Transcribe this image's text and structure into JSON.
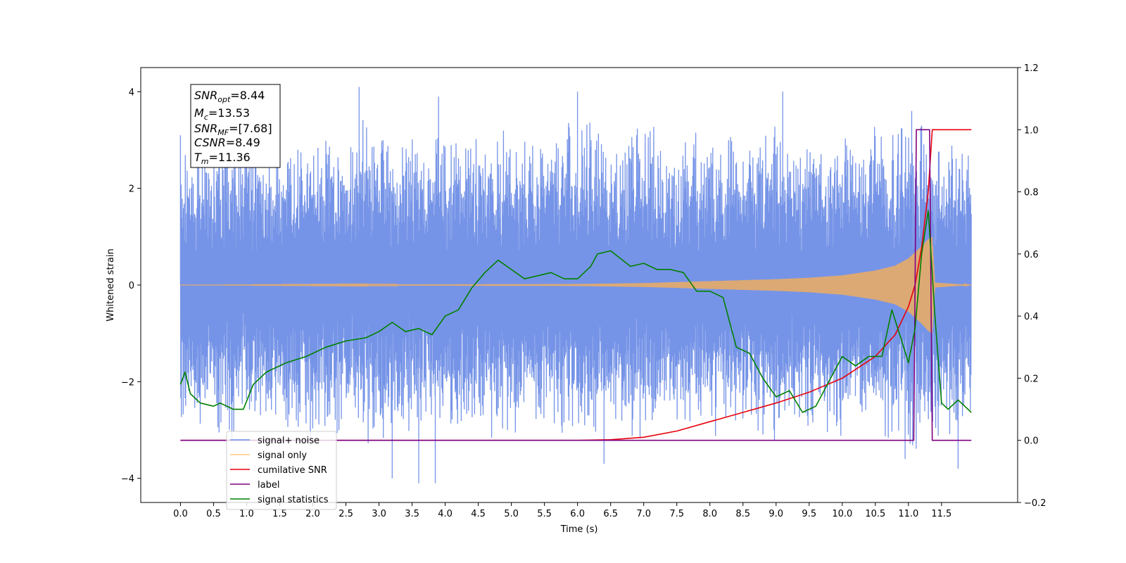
{
  "chart_data": {
    "type": "line",
    "xlabel": "Time (s)",
    "ylabel": "Whitened strain",
    "xlim": [
      -0.6,
      12.65
    ],
    "ylim": [
      -4.5,
      4.5
    ],
    "y2lim": [
      -0.2,
      1.2
    ],
    "xticks": [
      0.0,
      0.5,
      1.0,
      1.5,
      2.0,
      2.5,
      3.0,
      3.5,
      4.0,
      4.5,
      5.0,
      5.5,
      6.0,
      6.5,
      7.0,
      7.5,
      8.0,
      8.5,
      9.0,
      9.5,
      10.0,
      10.5,
      11.0,
      11.5
    ],
    "xtick_labels": [
      "0.0",
      "0.5",
      "1.0",
      "1.5",
      "2.0",
      "2.5",
      "3.0",
      "3.5",
      "4.0",
      "4.5",
      "5.0",
      "5.5",
      "6.0",
      "6.5",
      "7.0",
      "7.5",
      "8.0",
      "8.5",
      "9.0",
      "9.5",
      "10.0",
      "10.5",
      "11.0",
      "11.5"
    ],
    "yticks": [
      -4,
      -2,
      0,
      2,
      4
    ],
    "ytick_labels": [
      "−4",
      "−2",
      "0",
      "2",
      "4"
    ],
    "y2ticks": [
      -0.2,
      0.0,
      0.2,
      0.4,
      0.6,
      0.8,
      1.0,
      1.2
    ],
    "y2tick_labels": [
      "−0.2",
      "0.0",
      "0.2",
      "0.4",
      "0.6",
      "0.8",
      "1.0",
      "1.2"
    ],
    "grid": false,
    "legend_position": "lower-left",
    "annotation": {
      "lines": [
        {
          "base": "SNR",
          "sub": "opt",
          "rest": "=8.44"
        },
        {
          "base": "M",
          "sub": "c",
          "rest": "=13.53"
        },
        {
          "base": "SNR",
          "sub": "MF",
          "rest": "=[7.68]"
        },
        {
          "base": "CSNR",
          "sub": "",
          "rest": "=8.49"
        },
        {
          "base": "T",
          "sub": "m",
          "rest": "=11.36"
        }
      ]
    },
    "noise_envelope": {
      "x": [
        0.0,
        0.5,
        1.0,
        1.5,
        2.0,
        2.5,
        3.0,
        3.5,
        4.0,
        4.5,
        5.0,
        5.5,
        6.0,
        6.5,
        7.0,
        7.5,
        8.0,
        8.5,
        9.0,
        9.5,
        10.0,
        10.5,
        11.0,
        11.5,
        11.95
      ],
      "upper": [
        3.1,
        3.2,
        3.4,
        3.2,
        3.3,
        3.4,
        3.5,
        3.1,
        3.3,
        3.5,
        3.2,
        3.4,
        3.6,
        3.3,
        3.5,
        3.1,
        3.4,
        3.3,
        3.6,
        3.2,
        3.3,
        3.4,
        3.6,
        3.3,
        3.0
      ],
      "lower": [
        -3.0,
        -3.3,
        -3.2,
        -3.1,
        -3.4,
        -3.2,
        -3.5,
        -3.3,
        -3.2,
        -3.4,
        -3.1,
        -3.3,
        -3.5,
        -3.2,
        -3.4,
        -3.1,
        -3.3,
        -3.2,
        -3.4,
        -3.3,
        -3.2,
        -3.4,
        -3.5,
        -3.3,
        -3.0
      ],
      "spikes_up": [
        [
          0.0,
          3.1
        ],
        [
          2.7,
          4.1
        ],
        [
          3.9,
          3.9
        ],
        [
          6.0,
          4.0
        ],
        [
          9.1,
          4.0
        ],
        [
          11.05,
          3.6
        ],
        [
          11.2,
          3.3
        ]
      ],
      "spikes_down": [
        [
          3.2,
          -4.0
        ],
        [
          3.6,
          -4.1
        ],
        [
          3.85,
          -4.1
        ],
        [
          6.4,
          -3.7
        ],
        [
          10.95,
          -3.6
        ],
        [
          11.75,
          -3.8
        ]
      ]
    },
    "series": [
      {
        "name": "signal+ noise",
        "color": "#6f8ee6",
        "axis": "left",
        "kind": "noise"
      },
      {
        "name": "signal only",
        "color": "#ffb04d",
        "axis": "left",
        "kind": "chirp",
        "envelope_x": [
          0.0,
          6.0,
          7.0,
          7.5,
          8.0,
          8.5,
          9.0,
          9.5,
          10.0,
          10.5,
          10.8,
          11.0,
          11.2,
          11.3,
          11.36,
          11.4,
          11.95
        ],
        "envelope_amp": [
          0.0,
          0.02,
          0.04,
          0.06,
          0.08,
          0.1,
          0.12,
          0.15,
          0.2,
          0.3,
          0.4,
          0.55,
          0.8,
          0.95,
          1.0,
          0.05,
          0.0
        ]
      },
      {
        "name": "cumilative SNR",
        "color": "#e8000b",
        "axis": "right",
        "x": [
          0.0,
          6.0,
          6.5,
          7.0,
          7.5,
          8.0,
          8.5,
          9.0,
          9.5,
          10.0,
          10.5,
          10.8,
          11.0,
          11.1,
          11.2,
          11.3,
          11.36,
          11.95
        ],
        "y": [
          0.0,
          0.0,
          0.002,
          0.01,
          0.03,
          0.06,
          0.09,
          0.12,
          0.155,
          0.2,
          0.27,
          0.34,
          0.43,
          0.5,
          0.62,
          0.8,
          1.0,
          1.0
        ]
      },
      {
        "name": "label",
        "color": "#800080",
        "axis": "right",
        "x": [
          0.0,
          11.08,
          11.12,
          11.32,
          11.36,
          11.95
        ],
        "y": [
          0.0,
          0.0,
          1.0,
          1.0,
          0.0,
          0.0
        ]
      },
      {
        "name": "signal statistics",
        "color": "#008000",
        "axis": "right",
        "x": [
          0.0,
          0.07,
          0.15,
          0.3,
          0.5,
          0.6,
          0.8,
          0.95,
          1.1,
          1.3,
          1.6,
          1.9,
          2.2,
          2.5,
          2.8,
          3.0,
          3.2,
          3.4,
          3.6,
          3.8,
          4.0,
          4.2,
          4.4,
          4.6,
          4.8,
          5.0,
          5.2,
          5.4,
          5.6,
          5.8,
          6.0,
          6.2,
          6.3,
          6.5,
          6.8,
          7.0,
          7.2,
          7.4,
          7.6,
          7.8,
          8.0,
          8.2,
          8.4,
          8.6,
          8.8,
          9.0,
          9.2,
          9.4,
          9.6,
          9.8,
          10.0,
          10.2,
          10.4,
          10.6,
          10.75,
          10.9,
          11.0,
          11.1,
          11.2,
          11.3,
          11.4,
          11.5,
          11.6,
          11.75,
          11.95
        ],
        "y": [
          0.18,
          0.22,
          0.15,
          0.12,
          0.11,
          0.12,
          0.1,
          0.1,
          0.18,
          0.22,
          0.25,
          0.27,
          0.3,
          0.32,
          0.33,
          0.35,
          0.38,
          0.35,
          0.36,
          0.34,
          0.4,
          0.42,
          0.49,
          0.54,
          0.58,
          0.55,
          0.52,
          0.53,
          0.54,
          0.52,
          0.52,
          0.56,
          0.6,
          0.61,
          0.56,
          0.57,
          0.55,
          0.55,
          0.54,
          0.48,
          0.48,
          0.46,
          0.3,
          0.28,
          0.2,
          0.14,
          0.16,
          0.09,
          0.11,
          0.19,
          0.27,
          0.24,
          0.27,
          0.27,
          0.42,
          0.32,
          0.25,
          0.36,
          0.6,
          0.74,
          0.4,
          0.12,
          0.1,
          0.13,
          0.09
        ]
      }
    ]
  }
}
